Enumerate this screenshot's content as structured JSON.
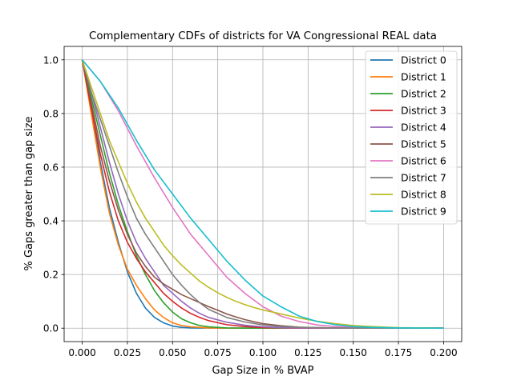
{
  "chart_data": {
    "type": "line",
    "title": "Complementary CDFs of districts for VA Congressional REAL data",
    "xlabel": "Gap Size in % BVAP",
    "ylabel": "% Gaps greater than gap size",
    "xlim": [
      -0.01,
      0.21
    ],
    "ylim": [
      -0.05,
      1.05
    ],
    "xticks": [
      "0.000",
      "0.025",
      "0.050",
      "0.075",
      "0.100",
      "0.125",
      "0.150",
      "0.175",
      "0.200"
    ],
    "yticks": [
      "0.0",
      "0.2",
      "0.4",
      "0.6",
      "0.8",
      "1.0"
    ],
    "grid": true,
    "legend_position": "top-right",
    "series": [
      {
        "name": "District 0",
        "color": "#1f77b4",
        "points": [
          [
            0,
            1.0
          ],
          [
            0.005,
            0.82
          ],
          [
            0.01,
            0.62
          ],
          [
            0.015,
            0.45
          ],
          [
            0.02,
            0.32
          ],
          [
            0.025,
            0.21
          ],
          [
            0.03,
            0.13
          ],
          [
            0.035,
            0.075
          ],
          [
            0.04,
            0.04
          ],
          [
            0.045,
            0.02
          ],
          [
            0.05,
            0.008
          ],
          [
            0.055,
            0.003
          ],
          [
            0.06,
            0.001
          ],
          [
            0.08,
            0
          ],
          [
            0.1,
            0
          ],
          [
            0.15,
            0
          ],
          [
            0.2,
            0
          ]
        ]
      },
      {
        "name": "District 1",
        "color": "#ff7f0e",
        "points": [
          [
            0,
            1.0
          ],
          [
            0.005,
            0.8
          ],
          [
            0.01,
            0.6
          ],
          [
            0.015,
            0.43
          ],
          [
            0.02,
            0.31
          ],
          [
            0.025,
            0.22
          ],
          [
            0.03,
            0.16
          ],
          [
            0.035,
            0.11
          ],
          [
            0.04,
            0.068
          ],
          [
            0.045,
            0.04
          ],
          [
            0.05,
            0.02
          ],
          [
            0.055,
            0.01
          ],
          [
            0.06,
            0.005
          ],
          [
            0.07,
            0.001
          ],
          [
            0.08,
            0
          ],
          [
            0.1,
            0
          ],
          [
            0.15,
            0
          ],
          [
            0.2,
            0
          ]
        ]
      },
      {
        "name": "District 2",
        "color": "#2ca02c",
        "points": [
          [
            0,
            1.0
          ],
          [
            0.005,
            0.86
          ],
          [
            0.01,
            0.72
          ],
          [
            0.015,
            0.58
          ],
          [
            0.02,
            0.46
          ],
          [
            0.025,
            0.36
          ],
          [
            0.03,
            0.27
          ],
          [
            0.035,
            0.2
          ],
          [
            0.04,
            0.14
          ],
          [
            0.045,
            0.095
          ],
          [
            0.05,
            0.06
          ],
          [
            0.055,
            0.035
          ],
          [
            0.06,
            0.02
          ],
          [
            0.065,
            0.01
          ],
          [
            0.07,
            0.005
          ],
          [
            0.08,
            0.001
          ],
          [
            0.09,
            0
          ],
          [
            0.15,
            0
          ],
          [
            0.2,
            0
          ]
        ]
      },
      {
        "name": "District 3",
        "color": "#d62728",
        "points": [
          [
            0,
            1.0
          ],
          [
            0.005,
            0.82
          ],
          [
            0.01,
            0.65
          ],
          [
            0.015,
            0.51
          ],
          [
            0.02,
            0.4
          ],
          [
            0.025,
            0.32
          ],
          [
            0.03,
            0.26
          ],
          [
            0.035,
            0.21
          ],
          [
            0.04,
            0.17
          ],
          [
            0.045,
            0.13
          ],
          [
            0.05,
            0.1
          ],
          [
            0.055,
            0.075
          ],
          [
            0.06,
            0.055
          ],
          [
            0.065,
            0.04
          ],
          [
            0.07,
            0.028
          ],
          [
            0.08,
            0.013
          ],
          [
            0.09,
            0.006
          ],
          [
            0.1,
            0.002
          ],
          [
            0.12,
            0
          ],
          [
            0.15,
            0
          ],
          [
            0.2,
            0
          ]
        ]
      },
      {
        "name": "District 4",
        "color": "#9467bd",
        "points": [
          [
            0,
            1.0
          ],
          [
            0.005,
            0.88
          ],
          [
            0.01,
            0.75
          ],
          [
            0.015,
            0.62
          ],
          [
            0.02,
            0.5
          ],
          [
            0.025,
            0.4
          ],
          [
            0.03,
            0.32
          ],
          [
            0.035,
            0.26
          ],
          [
            0.04,
            0.21
          ],
          [
            0.045,
            0.16
          ],
          [
            0.05,
            0.13
          ],
          [
            0.055,
            0.1
          ],
          [
            0.06,
            0.075
          ],
          [
            0.065,
            0.055
          ],
          [
            0.07,
            0.04
          ],
          [
            0.08,
            0.022
          ],
          [
            0.09,
            0.011
          ],
          [
            0.1,
            0.005
          ],
          [
            0.11,
            0.002
          ],
          [
            0.12,
            0.001
          ],
          [
            0.15,
            0
          ],
          [
            0.2,
            0
          ]
        ]
      },
      {
        "name": "District 5",
        "color": "#8c564b",
        "points": [
          [
            0,
            1.0
          ],
          [
            0.005,
            0.84
          ],
          [
            0.01,
            0.68
          ],
          [
            0.015,
            0.55
          ],
          [
            0.02,
            0.44
          ],
          [
            0.025,
            0.35
          ],
          [
            0.03,
            0.28
          ],
          [
            0.035,
            0.23
          ],
          [
            0.04,
            0.19
          ],
          [
            0.045,
            0.165
          ],
          [
            0.05,
            0.145
          ],
          [
            0.055,
            0.125
          ],
          [
            0.06,
            0.11
          ],
          [
            0.065,
            0.095
          ],
          [
            0.07,
            0.08
          ],
          [
            0.075,
            0.067
          ],
          [
            0.08,
            0.053
          ],
          [
            0.085,
            0.042
          ],
          [
            0.09,
            0.032
          ],
          [
            0.095,
            0.024
          ],
          [
            0.1,
            0.017
          ],
          [
            0.11,
            0.009
          ],
          [
            0.12,
            0.004
          ],
          [
            0.13,
            0.002
          ],
          [
            0.15,
            0
          ],
          [
            0.2,
            0
          ]
        ]
      },
      {
        "name": "District 6",
        "color": "#e377c2",
        "points": [
          [
            0,
            1.0
          ],
          [
            0.01,
            0.92
          ],
          [
            0.02,
            0.81
          ],
          [
            0.03,
            0.68
          ],
          [
            0.04,
            0.56
          ],
          [
            0.05,
            0.45
          ],
          [
            0.06,
            0.35
          ],
          [
            0.07,
            0.27
          ],
          [
            0.08,
            0.19
          ],
          [
            0.09,
            0.13
          ],
          [
            0.1,
            0.08
          ],
          [
            0.11,
            0.045
          ],
          [
            0.12,
            0.025
          ],
          [
            0.13,
            0.012
          ],
          [
            0.14,
            0.006
          ],
          [
            0.15,
            0.003
          ],
          [
            0.175,
            0
          ],
          [
            0.2,
            0
          ]
        ]
      },
      {
        "name": "District 7",
        "color": "#7f7f7f",
        "points": [
          [
            0,
            1.0
          ],
          [
            0.005,
            0.88
          ],
          [
            0.01,
            0.78
          ],
          [
            0.015,
            0.68
          ],
          [
            0.02,
            0.58
          ],
          [
            0.025,
            0.49
          ],
          [
            0.03,
            0.41
          ],
          [
            0.035,
            0.35
          ],
          [
            0.04,
            0.3
          ],
          [
            0.045,
            0.25
          ],
          [
            0.05,
            0.2
          ],
          [
            0.055,
            0.16
          ],
          [
            0.06,
            0.125
          ],
          [
            0.065,
            0.095
          ],
          [
            0.07,
            0.07
          ],
          [
            0.075,
            0.055
          ],
          [
            0.08,
            0.04
          ],
          [
            0.09,
            0.023
          ],
          [
            0.1,
            0.012
          ],
          [
            0.11,
            0.006
          ],
          [
            0.12,
            0.003
          ],
          [
            0.14,
            0.001
          ],
          [
            0.16,
            0
          ],
          [
            0.2,
            0
          ]
        ]
      },
      {
        "name": "District 8",
        "color": "#bcbd22",
        "points": [
          [
            0,
            1.0
          ],
          [
            0.005,
            0.9
          ],
          [
            0.01,
            0.8
          ],
          [
            0.015,
            0.7
          ],
          [
            0.02,
            0.62
          ],
          [
            0.025,
            0.54
          ],
          [
            0.03,
            0.47
          ],
          [
            0.035,
            0.41
          ],
          [
            0.04,
            0.36
          ],
          [
            0.045,
            0.31
          ],
          [
            0.05,
            0.27
          ],
          [
            0.055,
            0.235
          ],
          [
            0.06,
            0.205
          ],
          [
            0.065,
            0.175
          ],
          [
            0.07,
            0.152
          ],
          [
            0.075,
            0.132
          ],
          [
            0.08,
            0.115
          ],
          [
            0.085,
            0.1
          ],
          [
            0.09,
            0.088
          ],
          [
            0.095,
            0.077
          ],
          [
            0.1,
            0.068
          ],
          [
            0.11,
            0.053
          ],
          [
            0.12,
            0.038
          ],
          [
            0.13,
            0.026
          ],
          [
            0.14,
            0.017
          ],
          [
            0.15,
            0.01
          ],
          [
            0.16,
            0.006
          ],
          [
            0.175,
            0.002
          ],
          [
            0.2,
            0
          ]
        ]
      },
      {
        "name": "District 9",
        "color": "#17becf",
        "points": [
          [
            0,
            1.0
          ],
          [
            0.01,
            0.92
          ],
          [
            0.02,
            0.82
          ],
          [
            0.03,
            0.7
          ],
          [
            0.04,
            0.59
          ],
          [
            0.05,
            0.5
          ],
          [
            0.06,
            0.41
          ],
          [
            0.07,
            0.33
          ],
          [
            0.08,
            0.25
          ],
          [
            0.09,
            0.18
          ],
          [
            0.1,
            0.12
          ],
          [
            0.11,
            0.08
          ],
          [
            0.12,
            0.045
          ],
          [
            0.13,
            0.025
          ],
          [
            0.14,
            0.013
          ],
          [
            0.15,
            0.006
          ],
          [
            0.16,
            0.003
          ],
          [
            0.175,
            0.001
          ],
          [
            0.2,
            0
          ]
        ]
      }
    ]
  }
}
